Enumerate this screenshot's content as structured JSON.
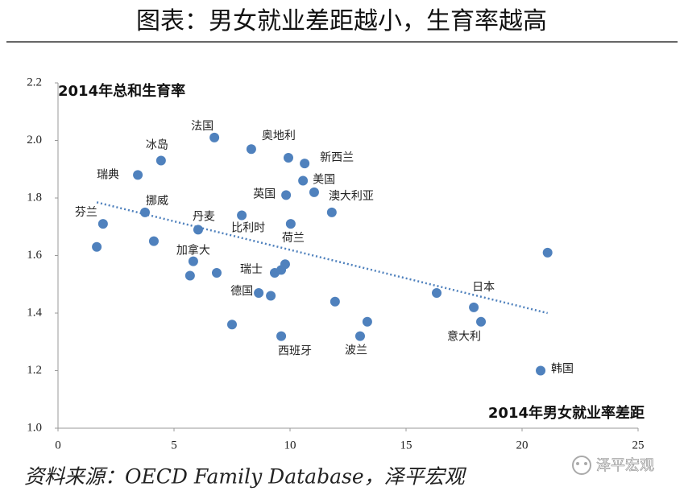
{
  "chart_data": {
    "type": "scatter",
    "title": "图表：男女就业差距越小，生育率越高",
    "y_label": "2014年总和生育率",
    "x_label": "2014年男女就业率差距",
    "source": "资料来源：OECD Family Database，泽平宏观",
    "watermark": "泽平宏观",
    "xlim": [
      0,
      25
    ],
    "xticks": [
      0,
      5,
      10,
      15,
      20,
      25
    ],
    "ylim": [
      1.0,
      2.2
    ],
    "yticks": [
      {
        "value": 1.0,
        "label": "1.0"
      },
      1.2,
      1.4,
      1.6,
      1.8,
      {
        "value": 2.0,
        "label": "2.0"
      },
      2.2
    ],
    "grid": false,
    "series": [
      {
        "color": "#4f81bd",
        "x": [
          1.94,
          1.67,
          3.44,
          4.44,
          3.75,
          4.13,
          6.74,
          6.04,
          5.83,
          5.69,
          6.84,
          7.5,
          8.33,
          7.92,
          8.65,
          9.17,
          9.34,
          9.62,
          9.79,
          9.62,
          9.93,
          9.83,
          10.03,
          10.63,
          10.56,
          11.04,
          11.8,
          11.94,
          13.02,
          13.33,
          16.32,
          17.92,
          18.23,
          21.1,
          20.8
        ],
        "y": [
          1.71,
          1.63,
          1.88,
          1.93,
          1.75,
          1.65,
          2.01,
          1.69,
          1.58,
          1.53,
          1.54,
          1.36,
          1.97,
          1.74,
          1.47,
          1.46,
          1.54,
          1.55,
          1.57,
          1.32,
          1.94,
          1.81,
          1.71,
          1.92,
          1.86,
          1.82,
          1.75,
          1.44,
          1.32,
          1.37,
          1.47,
          1.42,
          1.37,
          1.61,
          1.2
        ],
        "labels": [
          "芬兰",
          null,
          "瑞典",
          "冰岛",
          "挪威",
          null,
          "法国",
          "丹麦",
          "加拿大",
          null,
          null,
          null,
          "奥地利",
          "比利时",
          "德国",
          null,
          "瑞士",
          null,
          null,
          "西班牙",
          null,
          "英国",
          "荷兰",
          "新西兰",
          "美国",
          "澳大利亚",
          null,
          null,
          "波兰",
          null,
          null,
          "日本",
          "意大利",
          null,
          "韩国"
        ]
      }
    ],
    "trendline": {
      "color": "#4f81bd",
      "x": [
        1.67,
        21.1
      ],
      "y": [
        1.785,
        1.4
      ]
    }
  }
}
